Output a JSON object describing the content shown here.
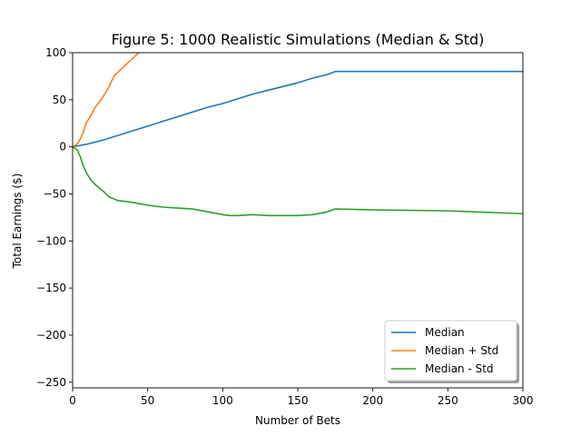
{
  "chart_data": {
    "type": "line",
    "title": "Figure 5: 1000 Realistic Simulations (Median & Std)",
    "xlabel": "Number of Bets",
    "ylabel": "Total Earnings ($)",
    "xlim": [
      0,
      300
    ],
    "ylim": [
      -256,
      100
    ],
    "xticks": [
      0,
      50,
      100,
      150,
      200,
      250,
      300
    ],
    "yticks": [
      -250,
      -200,
      -150,
      -100,
      -50,
      0,
      50,
      100
    ],
    "xtick_labels": [
      "0",
      "50",
      "100",
      "150",
      "200",
      "250",
      "300"
    ],
    "ytick_labels": [
      "−250",
      "−200",
      "−150",
      "−100",
      "−50",
      "0",
      "50",
      "100"
    ],
    "grid": false,
    "legend_position": "lower-right",
    "series": [
      {
        "name": "Median",
        "color": "#1f77b4",
        "points": [
          [
            0,
            0
          ],
          [
            10,
            3
          ],
          [
            20,
            7
          ],
          [
            30,
            12
          ],
          [
            40,
            17
          ],
          [
            50,
            22
          ],
          [
            60,
            27
          ],
          [
            70,
            32
          ],
          [
            80,
            37
          ],
          [
            90,
            42
          ],
          [
            100,
            46
          ],
          [
            110,
            51
          ],
          [
            120,
            56
          ],
          [
            130,
            60
          ],
          [
            140,
            64
          ],
          [
            150,
            68
          ],
          [
            160,
            73
          ],
          [
            170,
            77
          ],
          [
            175,
            80
          ],
          [
            200,
            80
          ],
          [
            250,
            80
          ],
          [
            300,
            80
          ]
        ]
      },
      {
        "name": "Median + Std",
        "color": "#ff7f0e",
        "points": [
          [
            0,
            0
          ],
          [
            3,
            3
          ],
          [
            5,
            8
          ],
          [
            7,
            15
          ],
          [
            9,
            25
          ],
          [
            12,
            33
          ],
          [
            15,
            42
          ],
          [
            18,
            48
          ],
          [
            21,
            55
          ],
          [
            24,
            63
          ],
          [
            26,
            70
          ],
          [
            28,
            76
          ],
          [
            32,
            82
          ],
          [
            36,
            88
          ],
          [
            40,
            94
          ],
          [
            44,
            100
          ]
        ]
      },
      {
        "name": "Median - Std",
        "color": "#2ca02c",
        "points": [
          [
            0,
            0
          ],
          [
            3,
            -3
          ],
          [
            5,
            -10
          ],
          [
            7,
            -20
          ],
          [
            9,
            -27
          ],
          [
            12,
            -35
          ],
          [
            15,
            -40
          ],
          [
            18,
            -44
          ],
          [
            21,
            -48
          ],
          [
            24,
            -53
          ],
          [
            27,
            -55
          ],
          [
            30,
            -57
          ],
          [
            40,
            -59
          ],
          [
            50,
            -62
          ],
          [
            60,
            -64
          ],
          [
            70,
            -65
          ],
          [
            80,
            -66
          ],
          [
            90,
            -69
          ],
          [
            100,
            -72
          ],
          [
            105,
            -73
          ],
          [
            110,
            -73
          ],
          [
            120,
            -72
          ],
          [
            130,
            -73
          ],
          [
            140,
            -73
          ],
          [
            150,
            -73
          ],
          [
            160,
            -72
          ],
          [
            170,
            -69
          ],
          [
            175,
            -66
          ],
          [
            200,
            -67
          ],
          [
            250,
            -68
          ],
          [
            300,
            -71
          ]
        ]
      }
    ]
  }
}
